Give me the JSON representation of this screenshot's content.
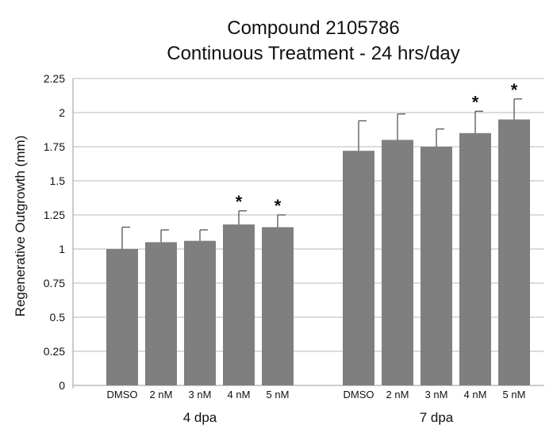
{
  "chart_data": {
    "type": "bar",
    "title": [
      "Compound 2105786",
      "Continuous Treatment - 24 hrs/day"
    ],
    "ylabel": "Regenerative Outgrowth (mm)",
    "ylim": [
      0,
      2.25
    ],
    "yticks": [
      "0",
      "0.25",
      "0.5",
      "0.75",
      "1",
      "1.25",
      "1.5",
      "1.75",
      "2",
      "2.25"
    ],
    "yticks_values": [
      0,
      0.25,
      0.5,
      0.75,
      1,
      1.25,
      1.5,
      1.75,
      2,
      2.25
    ],
    "grid": true,
    "groups": [
      {
        "label": "4 dpa",
        "categories": [
          "DMSO",
          "2 nM",
          "3 nM",
          "4 nM",
          "5 nM"
        ],
        "values": [
          1.0,
          1.05,
          1.06,
          1.18,
          1.16
        ],
        "errors": [
          0.16,
          0.09,
          0.08,
          0.1,
          0.09
        ],
        "significant": [
          "",
          "",
          "",
          "*",
          "*"
        ]
      },
      {
        "label": "7 dpa",
        "categories": [
          "DMSO",
          "2 nM",
          "3 nM",
          "4 nM",
          "5 nM"
        ],
        "values": [
          1.72,
          1.8,
          1.75,
          1.85,
          1.95
        ],
        "errors": [
          0.22,
          0.19,
          0.13,
          0.16,
          0.15
        ],
        "significant": [
          "",
          "",
          "",
          "*",
          "*"
        ]
      }
    ],
    "colors": {
      "bar": "#7f7f7f",
      "error_bar": "#555555",
      "grid": "#b8b8b8"
    }
  }
}
